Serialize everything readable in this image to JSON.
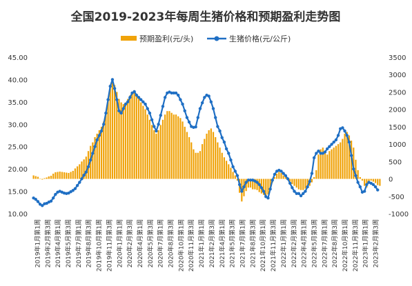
{
  "chart_data": {
    "type": "bar+line",
    "title": "全国2019-2023年每周生猪价格和预期盈利走势图",
    "legend": [
      "预期盈利(元/头)",
      "生猪价格(元/公斤)"
    ],
    "legend_position": "top",
    "colors": {
      "bar": "#f0a30a",
      "line": "#1f6fc4",
      "axis_text": "#333333",
      "title": "#333333"
    },
    "left_axis": {
      "ticks": [
        "10.00",
        "15.00",
        "20.00",
        "25.00",
        "30.00",
        "35.00",
        "40.00",
        "45.00"
      ],
      "range": [
        10,
        45
      ]
    },
    "right_axis": {
      "ticks": [
        "-1000",
        "-500",
        "0",
        "500",
        "1000",
        "1500",
        "2000",
        "2500",
        "3000",
        "3500"
      ],
      "range": [
        -1000,
        3500
      ]
    },
    "x_tick_labels": [
      "2019年1月第1周",
      "2019年2月第3周",
      "2019年4月第1周",
      "2019年5月第3周",
      "2019年7月第1周",
      "2019年8月第3周",
      "2019年10月第1周",
      "2019年11月第3周",
      "2020年1月第1周",
      "2020年2月第3周",
      "2020年4月第1周",
      "2020年5月第3周",
      "2020年7月第1周",
      "2020年8月第3周",
      "2020年10月第1周",
      "2020年11月第3周",
      "2021年1月第1周",
      "2021年2月第3周",
      "2021年4月第1周",
      "2021年5月第3周",
      "2021年7月第1周",
      "2021年8月第3周",
      "2021年10月第1周",
      "2021年11月第3周",
      "2022年1月第1周",
      "2022年2月第3周",
      "2022年4月第1周",
      "2022年5月第3周",
      "2022年7月第1周",
      "2022年8月第3周",
      "2022年10月第1周",
      "2022年11月第3周",
      "2023年1月第1周",
      "2023年2月第3周"
    ],
    "series": [
      {
        "name": "预期盈利(元/头)",
        "type": "bar",
        "axis": "right",
        "values": [
          100,
          80,
          60,
          10,
          -20,
          20,
          40,
          70,
          90,
          150,
          190,
          200,
          210,
          200,
          190,
          180,
          170,
          200,
          230,
          300,
          360,
          420,
          500,
          560,
          640,
          800,
          950,
          1050,
          1200,
          1300,
          1400,
          1500,
          1650,
          1900,
          2300,
          2700,
          2850,
          2700,
          2500,
          2300,
          2200,
          2150,
          2200,
          2300,
          2400,
          2500,
          2550,
          2450,
          2300,
          2200,
          2100,
          2000,
          1850,
          1700,
          1550,
          1400,
          1300,
          1400,
          1550,
          1700,
          1850,
          1950,
          1950,
          1900,
          1850,
          1850,
          1800,
          1750,
          1650,
          1500,
          1350,
          1200,
          1050,
          850,
          750,
          750,
          800,
          1000,
          1150,
          1300,
          1400,
          1450,
          1350,
          1200,
          1050,
          900,
          750,
          620,
          520,
          420,
          320,
          200,
          100,
          -50,
          -400,
          -650,
          -500,
          -350,
          -250,
          -250,
          -300,
          -300,
          -320,
          -380,
          -420,
          -460,
          -480,
          -450,
          -300,
          -100,
          50,
          150,
          200,
          170,
          100,
          50,
          -20,
          -80,
          -150,
          -200,
          -250,
          -300,
          -320,
          -320,
          -280,
          -250,
          -200,
          -100,
          50,
          250,
          700,
          850,
          900,
          800,
          700,
          800,
          850,
          900,
          950,
          1000,
          1050,
          1150,
          1300,
          1350,
          1250,
          1100,
          900,
          550,
          250,
          50,
          -50,
          -200,
          -250,
          -120,
          -50,
          -80,
          -120,
          -180,
          -200
        ]
      },
      {
        "name": "生猪价格(元/公斤)",
        "type": "line",
        "axis": "left",
        "values": [
          13.5,
          13.2,
          12.7,
          12.1,
          11.8,
          12.2,
          12.3,
          12.6,
          12.8,
          13.5,
          14.3,
          14.8,
          15.0,
          14.8,
          14.6,
          14.5,
          14.6,
          14.9,
          15.2,
          15.6,
          16.3,
          17.0,
          17.8,
          18.6,
          19.3,
          20.5,
          22.0,
          23.5,
          25.0,
          26.5,
          27.5,
          28.5,
          30.0,
          32.5,
          35.5,
          38.5,
          40.0,
          38.0,
          35.5,
          33.0,
          32.5,
          33.5,
          34.5,
          35.0,
          36.0,
          37.0,
          37.3,
          36.5,
          36.0,
          35.5,
          35.0,
          34.5,
          33.5,
          32.5,
          31.0,
          29.5,
          28.5,
          30.0,
          32.0,
          34.0,
          36.0,
          37.0,
          37.2,
          37.0,
          37.0,
          37.0,
          36.5,
          35.5,
          34.5,
          33.0,
          31.5,
          30.5,
          29.5,
          29.3,
          29.4,
          31.5,
          33.5,
          34.8,
          36.0,
          36.5,
          36.3,
          35.0,
          33.5,
          31.5,
          29.5,
          28.5,
          27.0,
          26.0,
          24.5,
          23.5,
          22.0,
          20.5,
          19.5,
          18.5,
          16.5,
          15.0,
          16.0,
          17.0,
          17.5,
          17.5,
          17.5,
          17.3,
          17.0,
          16.5,
          15.8,
          15.0,
          13.8,
          13.5,
          15.5,
          17.5,
          18.8,
          19.5,
          19.7,
          19.5,
          19.0,
          18.5,
          17.8,
          16.8,
          15.8,
          15.0,
          14.5,
          14.5,
          14.0,
          14.5,
          15.0,
          16.0,
          17.2,
          19.0,
          22.5,
          23.5,
          24.0,
          23.5,
          23.5,
          23.8,
          24.5,
          25.0,
          25.5,
          26.0,
          26.5,
          27.5,
          29.0,
          29.2,
          28.5,
          27.5,
          26.0,
          23.0,
          20.0,
          18.5,
          17.0,
          16.0,
          14.8,
          15.0,
          16.5,
          17.0,
          16.8,
          16.5,
          16.0,
          15.3
        ]
      }
    ]
  }
}
